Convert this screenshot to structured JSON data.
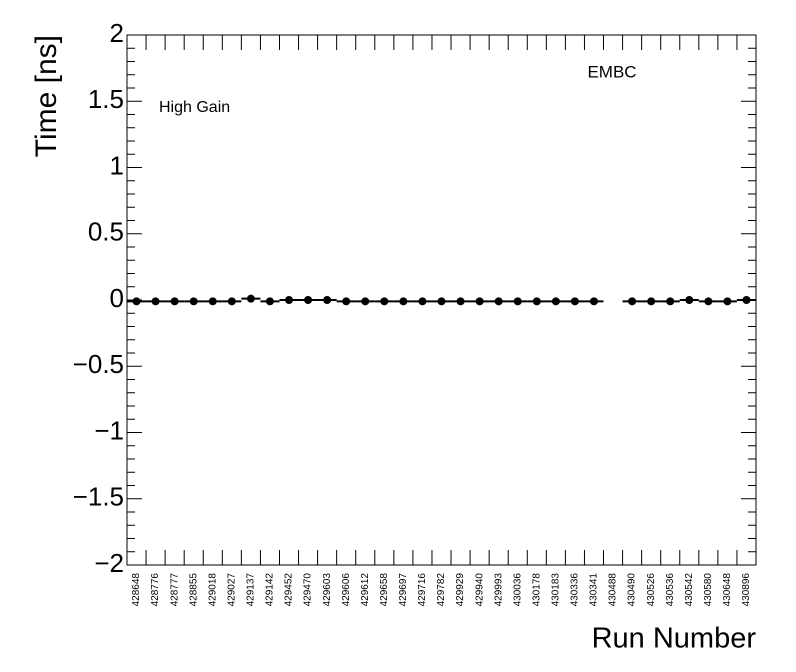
{
  "chart_data": {
    "type": "scatter",
    "y_label": "Time [ns]",
    "x_label": "Run Number",
    "annotations": [
      "EMBC",
      "High Gain"
    ],
    "categories": [
      "428648",
      "428776",
      "428777",
      "428855",
      "429018",
      "429027",
      "429137",
      "429142",
      "429452",
      "429470",
      "429603",
      "429606",
      "429612",
      "429658",
      "429697",
      "429716",
      "429782",
      "429929",
      "429940",
      "429993",
      "430036",
      "430178",
      "430183",
      "430336",
      "430341",
      "430488",
      "430490",
      "430526",
      "430536",
      "430542",
      "430580",
      "430648",
      "430896"
    ],
    "series": [
      {
        "color": "#000000",
        "values": [
          -0.01,
          -0.01,
          -0.01,
          -0.01,
          -0.01,
          -0.01,
          0.01,
          -0.01,
          0,
          0,
          0,
          -0.01,
          -0.01,
          -0.01,
          -0.01,
          -0.01,
          -0.01,
          -0.01,
          -0.01,
          -0.01,
          -0.01,
          -0.01,
          -0.01,
          -0.01,
          -0.01,
          null,
          -0.01,
          -0.01,
          -0.01,
          0,
          -0.01,
          -0.01,
          0
        ]
      }
    ],
    "ylim": [
      -2,
      2
    ],
    "yticks": [
      {
        "value": -2,
        "label": "−2"
      },
      {
        "value": -1.5,
        "label": "−1.5"
      },
      {
        "value": -1,
        "label": "−1"
      },
      {
        "value": -0.5,
        "label": "−0.5"
      },
      0,
      0.5,
      1,
      1.5,
      2
    ],
    "grid": false
  }
}
